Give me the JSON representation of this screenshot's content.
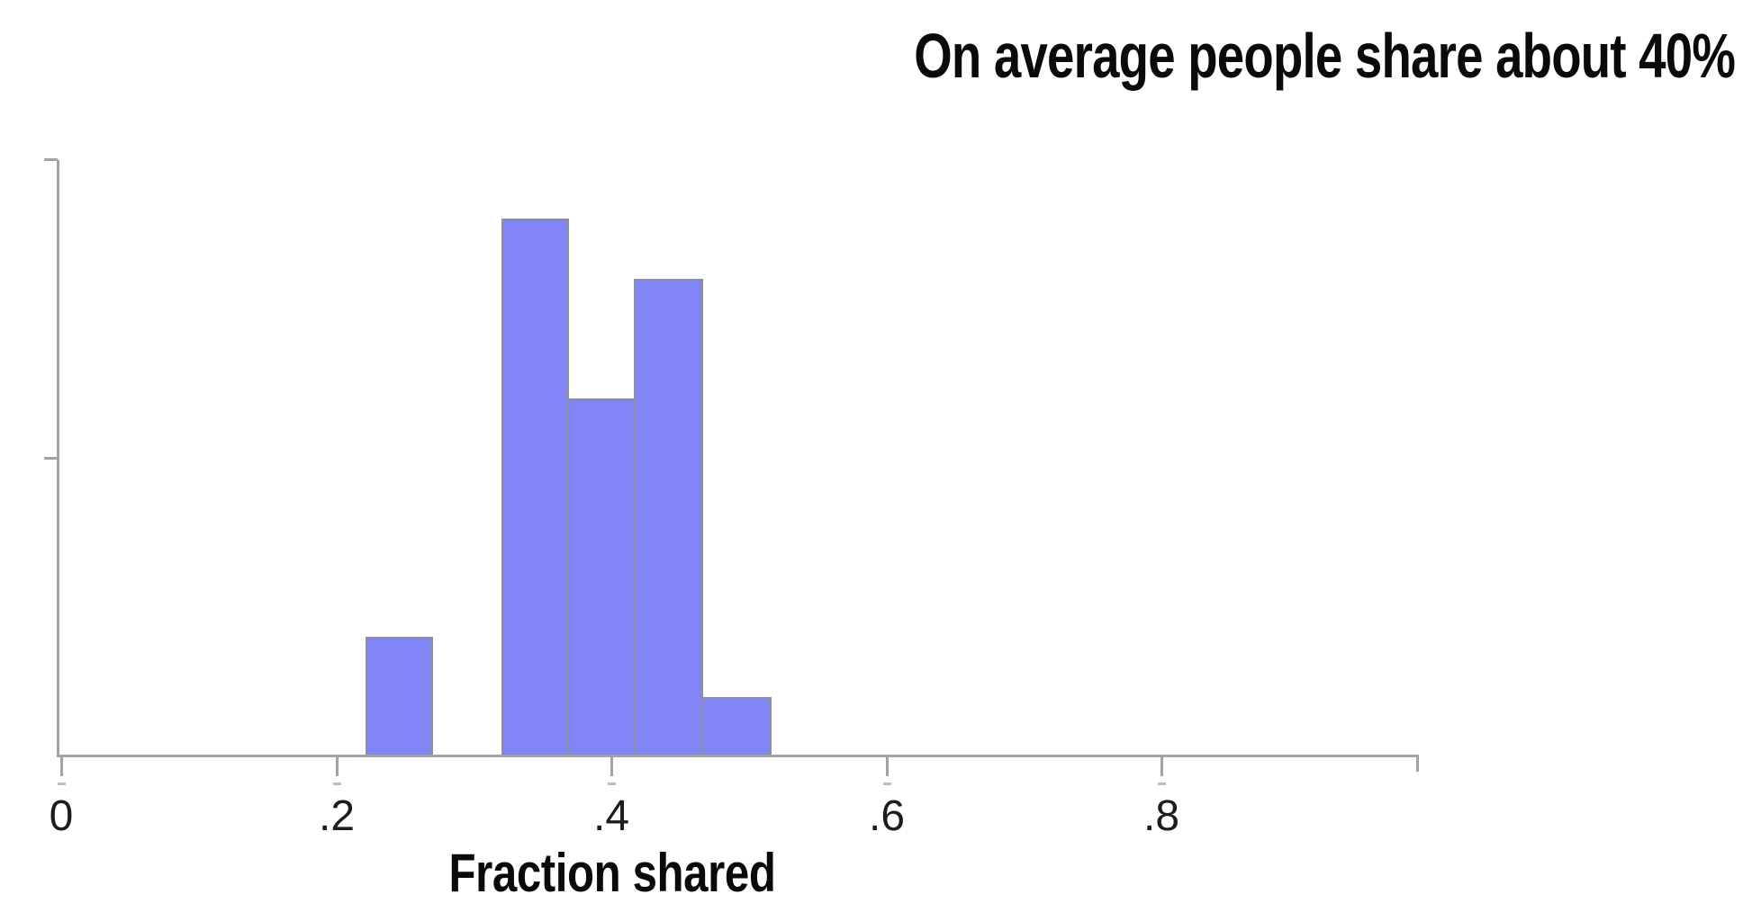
{
  "title": "On average people share about 40%",
  "chart_data": {
    "type": "bar",
    "subtype": "histogram",
    "title": "On average people share about 40%",
    "xlabel": "Fraction shared",
    "ylabel": "",
    "x_ticks": [
      {
        "value": 0.0,
        "label": "0"
      },
      {
        "value": 0.2,
        "label": ".2"
      },
      {
        "value": 0.4,
        "label": ".4"
      },
      {
        "value": 0.6,
        "label": ".6"
      },
      {
        "value": 0.8,
        "label": ".8"
      }
    ],
    "xlim": [
      0,
      0.987
    ],
    "ylim": [
      0,
      10
    ],
    "y_tick_values": [
      5,
      10
    ],
    "y_tick_labels_visible": false,
    "grid": false,
    "legend": "none",
    "bin_width": 0.049,
    "bins": [
      {
        "x0": 0.221,
        "x1": 0.27,
        "count": 2
      },
      {
        "x0": 0.27,
        "x1": 0.32,
        "count": 0
      },
      {
        "x0": 0.32,
        "x1": 0.369,
        "count": 9
      },
      {
        "x0": 0.369,
        "x1": 0.418,
        "count": 6
      },
      {
        "x0": 0.418,
        "x1": 0.467,
        "count": 8
      },
      {
        "x0": 0.467,
        "x1": 0.517,
        "count": 1
      }
    ],
    "colors": {
      "bar_fill": "#8184f4",
      "bar_border": "#8f8f96",
      "axis": "#a3a3a3",
      "text": "#0a0a0a"
    }
  }
}
